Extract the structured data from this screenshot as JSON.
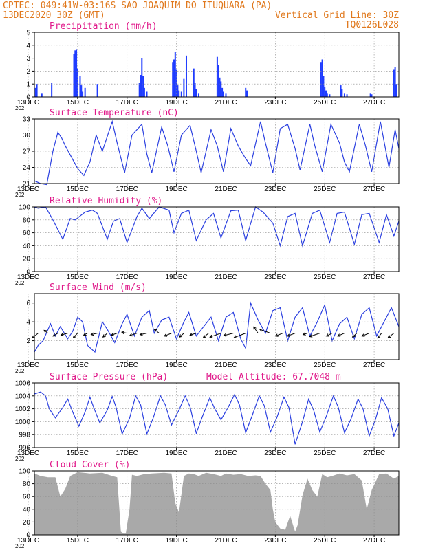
{
  "header": {
    "left_line1": "CPTEC:   049:41W-03:16S  SAO JOAQUIM DO ITUQUARA (PA)",
    "left_line2": "13DEC2020 30Z (GMT)",
    "right_line2": "Vertical Grid Line: 30Z",
    "right_line3": "TQ0126L028"
  },
  "colors": {
    "header": "#e0781c",
    "title": "#e0198a",
    "line": "#2a3fe0",
    "bar": "#1f3cff",
    "cloud": "#a9a9a9",
    "wind_arrow": "#000000"
  },
  "x_axis": {
    "tick_labels": [
      "13DEC",
      "15DEC",
      "17DEC",
      "19DEC",
      "21DEC",
      "23DEC",
      "25DEC",
      "27DEC"
    ],
    "year_label": "202",
    "day_range": [
      13.25,
      28.0
    ]
  },
  "chart_data": [
    {
      "type": "bar",
      "title": "Precipitation (mm/h)",
      "ylim": [
        0,
        5
      ],
      "yticks": [
        "0",
        "1",
        "2",
        "3",
        "4",
        "5"
      ],
      "x": [
        13.3,
        13.35,
        13.55,
        13.95,
        14.85,
        14.9,
        14.95,
        15.0,
        15.1,
        15.15,
        15.2,
        15.3,
        15.8,
        17.5,
        17.55,
        17.6,
        17.65,
        17.7,
        17.8,
        18.85,
        18.9,
        18.95,
        19.0,
        19.05,
        19.1,
        19.2,
        19.3,
        19.4,
        19.7,
        19.75,
        19.8,
        19.9,
        20.65,
        20.7,
        20.75,
        20.8,
        20.85,
        20.9,
        21.0,
        21.8,
        21.85,
        24.85,
        24.9,
        24.95,
        25.0,
        25.05,
        25.1,
        25.2,
        25.65,
        25.7,
        25.8,
        25.9,
        26.85,
        26.9,
        27.8,
        27.85,
        27.9
      ],
      "values": [
        0.7,
        1.0,
        0.3,
        1.1,
        3.3,
        3.6,
        3.7,
        2.2,
        1.6,
        0.9,
        0.4,
        0.7,
        1.0,
        1.1,
        1.7,
        3.0,
        1.6,
        0.7,
        0.4,
        2.7,
        2.9,
        3.5,
        2.1,
        0.9,
        0.5,
        0.4,
        1.4,
        3.2,
        2.2,
        1.1,
        0.6,
        0.3,
        3.1,
        2.5,
        1.5,
        1.2,
        0.7,
        0.4,
        0.3,
        0.7,
        0.5,
        2.7,
        2.9,
        1.6,
        0.8,
        0.5,
        0.3,
        0.2,
        0.9,
        0.6,
        0.3,
        0.2,
        0.3,
        0.2,
        2.1,
        2.3,
        1.0
      ]
    },
    {
      "type": "line",
      "title": "Surface Temperature (nC)",
      "ylim": [
        21,
        33
      ],
      "yticks": [
        "21",
        "24",
        "27",
        "30",
        "33"
      ],
      "x": [
        13.25,
        13.5,
        13.75,
        14.0,
        14.2,
        14.35,
        14.5,
        15.0,
        15.25,
        15.5,
        15.75,
        16.0,
        16.4,
        16.6,
        16.9,
        17.2,
        17.6,
        17.8,
        18.0,
        18.4,
        18.65,
        18.9,
        19.2,
        19.55,
        19.8,
        20.0,
        20.4,
        20.65,
        20.9,
        21.2,
        21.5,
        21.75,
        22.0,
        22.4,
        22.6,
        22.9,
        23.2,
        23.5,
        23.8,
        24.0,
        24.4,
        24.6,
        24.9,
        25.25,
        25.6,
        25.8,
        26.0,
        26.4,
        26.65,
        26.9,
        27.25,
        27.6,
        27.85,
        28.0
      ],
      "values": [
        21.5,
        21.0,
        20.8,
        27.0,
        30.5,
        29.5,
        28.0,
        23.8,
        22.5,
        25.0,
        30.0,
        27.0,
        32.5,
        28.5,
        23.0,
        30.0,
        32.0,
        26.5,
        23.0,
        31.5,
        28.0,
        23.2,
        30.0,
        31.8,
        27.0,
        23.0,
        31.0,
        28.0,
        23.2,
        31.2,
        28.0,
        26.0,
        24.3,
        32.5,
        28.5,
        23.0,
        31.2,
        32.0,
        27.5,
        23.5,
        32.0,
        28.0,
        23.2,
        32.0,
        28.5,
        25.0,
        23.2,
        32.0,
        28.0,
        23.2,
        32.5,
        24.0,
        31.0,
        27.5
      ]
    },
    {
      "type": "line",
      "title": "Relative Humidity (%)",
      "ylim": [
        0,
        100
      ],
      "yticks": [
        "0",
        "20",
        "40",
        "60",
        "80",
        "100"
      ],
      "x": [
        13.25,
        13.4,
        13.7,
        14.0,
        14.4,
        14.7,
        14.9,
        15.3,
        15.6,
        15.8,
        16.2,
        16.45,
        16.7,
        17.0,
        17.4,
        17.6,
        17.9,
        18.3,
        18.7,
        18.9,
        19.2,
        19.5,
        19.8,
        20.2,
        20.5,
        20.8,
        21.2,
        21.5,
        21.8,
        22.2,
        22.5,
        22.9,
        23.2,
        23.5,
        23.8,
        24.1,
        24.5,
        24.8,
        25.2,
        25.5,
        25.8,
        26.2,
        26.5,
        26.8,
        27.2,
        27.5,
        27.8,
        28.0
      ],
      "values": [
        100,
        98,
        100,
        80,
        50,
        82,
        80,
        92,
        95,
        90,
        50,
        78,
        82,
        45,
        85,
        98,
        82,
        100,
        95,
        60,
        90,
        95,
        48,
        80,
        90,
        52,
        94,
        95,
        48,
        100,
        92,
        75,
        40,
        85,
        90,
        40,
        90,
        95,
        45,
        90,
        92,
        42,
        88,
        90,
        45,
        88,
        55,
        78
      ]
    },
    {
      "type": "line",
      "title": "Surface Wind (m/s)",
      "ylim": [
        0,
        7
      ],
      "yticks": [
        "2",
        "4",
        "6"
      ],
      "x": [
        13.25,
        13.4,
        13.6,
        13.9,
        14.1,
        14.3,
        14.6,
        14.8,
        15.0,
        15.2,
        15.4,
        15.7,
        16.0,
        16.2,
        16.5,
        16.8,
        17.0,
        17.3,
        17.6,
        17.9,
        18.1,
        18.4,
        18.7,
        19.0,
        19.3,
        19.5,
        19.8,
        20.1,
        20.4,
        20.7,
        21.0,
        21.3,
        21.6,
        21.8,
        22.0,
        22.3,
        22.6,
        22.9,
        23.2,
        23.5,
        23.8,
        24.1,
        24.4,
        24.7,
        25.0,
        25.3,
        25.6,
        25.9,
        26.2,
        26.5,
        26.8,
        27.1,
        27.4,
        27.7,
        28.0
      ],
      "values": [
        0.8,
        1.5,
        2.0,
        3.8,
        2.5,
        3.5,
        2.2,
        3.0,
        4.5,
        4.0,
        1.5,
        0.8,
        4.0,
        3.2,
        1.8,
        3.8,
        4.8,
        2.5,
        4.5,
        5.2,
        2.8,
        4.2,
        4.5,
        2.2,
        4.0,
        5.0,
        2.5,
        3.5,
        4.5,
        2.0,
        4.5,
        5.0,
        2.2,
        1.2,
        6.0,
        4.2,
        2.8,
        5.2,
        5.5,
        2.0,
        4.5,
        5.5,
        2.5,
        4.0,
        5.8,
        2.0,
        3.8,
        4.5,
        2.2,
        4.8,
        5.5,
        2.5,
        4.0,
        5.5,
        3.5
      ],
      "vectors_x": [
        13.4,
        13.8,
        14.2,
        14.6,
        15.0,
        15.4,
        15.8,
        16.2,
        16.6,
        17.0,
        17.4,
        17.8,
        18.3,
        18.8,
        19.3,
        19.8,
        20.3,
        20.8,
        21.3,
        21.8,
        22.3,
        22.8,
        23.3,
        23.8,
        24.3,
        24.8,
        25.3,
        25.8,
        26.3,
        26.8,
        27.3,
        27.8
      ],
      "vectors_u": [
        -1.2,
        -0.8,
        -1.0,
        -1.4,
        -0.9,
        -0.8,
        -1.3,
        -0.9,
        -1.2,
        -1.1,
        -1.5,
        -1.4,
        -1.0,
        -1.5,
        -0.9,
        -1.3,
        -1.1,
        -2.3,
        -2.0,
        -2.4,
        -0.9,
        -2.2,
        -1.5,
        -1.6,
        -0.9,
        -2.1,
        -1.2,
        -1.4,
        -0.9,
        -1.5,
        -0.8,
        -1.2
      ],
      "vectors_v": [
        -1.0,
        0.6,
        -0.6,
        -0.4,
        -0.9,
        -0.4,
        -0.3,
        -0.8,
        -0.4,
        0.2,
        -0.5,
        -0.3,
        0.8,
        -0.6,
        -0.8,
        -0.4,
        -0.9,
        -0.8,
        -0.5,
        -0.9,
        1.3,
        0.8,
        -0.6,
        -0.6,
        -0.3,
        -0.7,
        -0.6,
        -0.6,
        -0.8,
        -0.6,
        -1.0,
        -0.9
      ]
    },
    {
      "type": "line",
      "title": "Surface Pressure (hPa)",
      "annotation": "Model Altitude: 67.7048 m",
      "ylim": [
        996,
        1006
      ],
      "yticks": [
        "996",
        "998",
        "1000",
        "1002",
        "1004",
        "1006"
      ],
      "x": [
        13.25,
        13.5,
        13.7,
        13.85,
        14.1,
        14.4,
        14.6,
        14.8,
        15.05,
        15.3,
        15.5,
        15.65,
        15.9,
        16.2,
        16.4,
        16.55,
        16.8,
        17.1,
        17.35,
        17.55,
        17.8,
        18.05,
        18.35,
        18.55,
        18.8,
        19.1,
        19.35,
        19.55,
        19.8,
        20.05,
        20.35,
        20.55,
        20.8,
        21.1,
        21.35,
        21.55,
        21.8,
        22.05,
        22.35,
        22.55,
        22.8,
        23.05,
        23.35,
        23.55,
        23.8,
        24.1,
        24.35,
        24.55,
        24.8,
        25.05,
        25.35,
        25.55,
        25.8,
        26.05,
        26.35,
        26.55,
        26.8,
        27.05,
        27.3,
        27.55,
        27.8,
        28.0
      ],
      "values": [
        1004.3,
        1004.6,
        1004.0,
        1002.0,
        1000.6,
        1002.2,
        1003.5,
        1001.5,
        999.3,
        1001.5,
        1003.8,
        1002.2,
        999.8,
        1001.8,
        1003.9,
        1002.3,
        998.1,
        1000.5,
        1004.0,
        1002.6,
        998.1,
        1000.5,
        1004.0,
        1002.6,
        999.5,
        1001.8,
        1004.0,
        1002.3,
        998.2,
        1000.8,
        1003.7,
        1002.0,
        1000.3,
        1002.3,
        1004.2,
        1002.6,
        998.3,
        1000.8,
        1004.0,
        1002.5,
        998.4,
        1000.5,
        1003.8,
        1002.2,
        996.5,
        1000.0,
        1003.5,
        1001.8,
        998.4,
        1000.7,
        1004.0,
        1002.2,
        998.3,
        1000.3,
        1003.5,
        1002.0,
        997.8,
        1000.3,
        1003.7,
        1002.0,
        997.8,
        999.8
      ]
    },
    {
      "type": "area",
      "title": "Cloud Cover (%)",
      "ylim": [
        0,
        100
      ],
      "yticks": [
        "0",
        "20",
        "40",
        "60",
        "80",
        "100"
      ],
      "x": [
        13.25,
        13.5,
        13.8,
        14.1,
        14.3,
        14.5,
        14.7,
        15.0,
        15.5,
        16.0,
        16.4,
        16.6,
        16.75,
        16.85,
        16.95,
        17.1,
        17.2,
        17.4,
        17.7,
        18.0,
        18.5,
        18.8,
        18.95,
        19.1,
        19.3,
        19.5,
        19.7,
        19.9,
        20.2,
        20.5,
        20.8,
        21.0,
        21.3,
        21.6,
        21.9,
        22.2,
        22.4,
        22.6,
        22.8,
        22.9,
        23.0,
        23.2,
        23.4,
        23.6,
        23.8,
        23.9,
        24.1,
        24.3,
        24.5,
        24.7,
        24.9,
        25.1,
        25.3,
        25.6,
        25.9,
        26.2,
        26.5,
        26.7,
        26.9,
        27.2,
        27.5,
        27.8,
        28.0
      ],
      "values": [
        96,
        92,
        90,
        90,
        60,
        72,
        92,
        98,
        96,
        97,
        92,
        90,
        5,
        2,
        2,
        40,
        94,
        92,
        95,
        96,
        97,
        96,
        50,
        35,
        92,
        96,
        95,
        92,
        97,
        95,
        92,
        96,
        94,
        95,
        92,
        93,
        92,
        80,
        70,
        40,
        20,
        10,
        8,
        30,
        5,
        15,
        62,
        88,
        70,
        60,
        95,
        90,
        92,
        96,
        93,
        95,
        85,
        40,
        70,
        95,
        96,
        88,
        92
      ]
    }
  ]
}
